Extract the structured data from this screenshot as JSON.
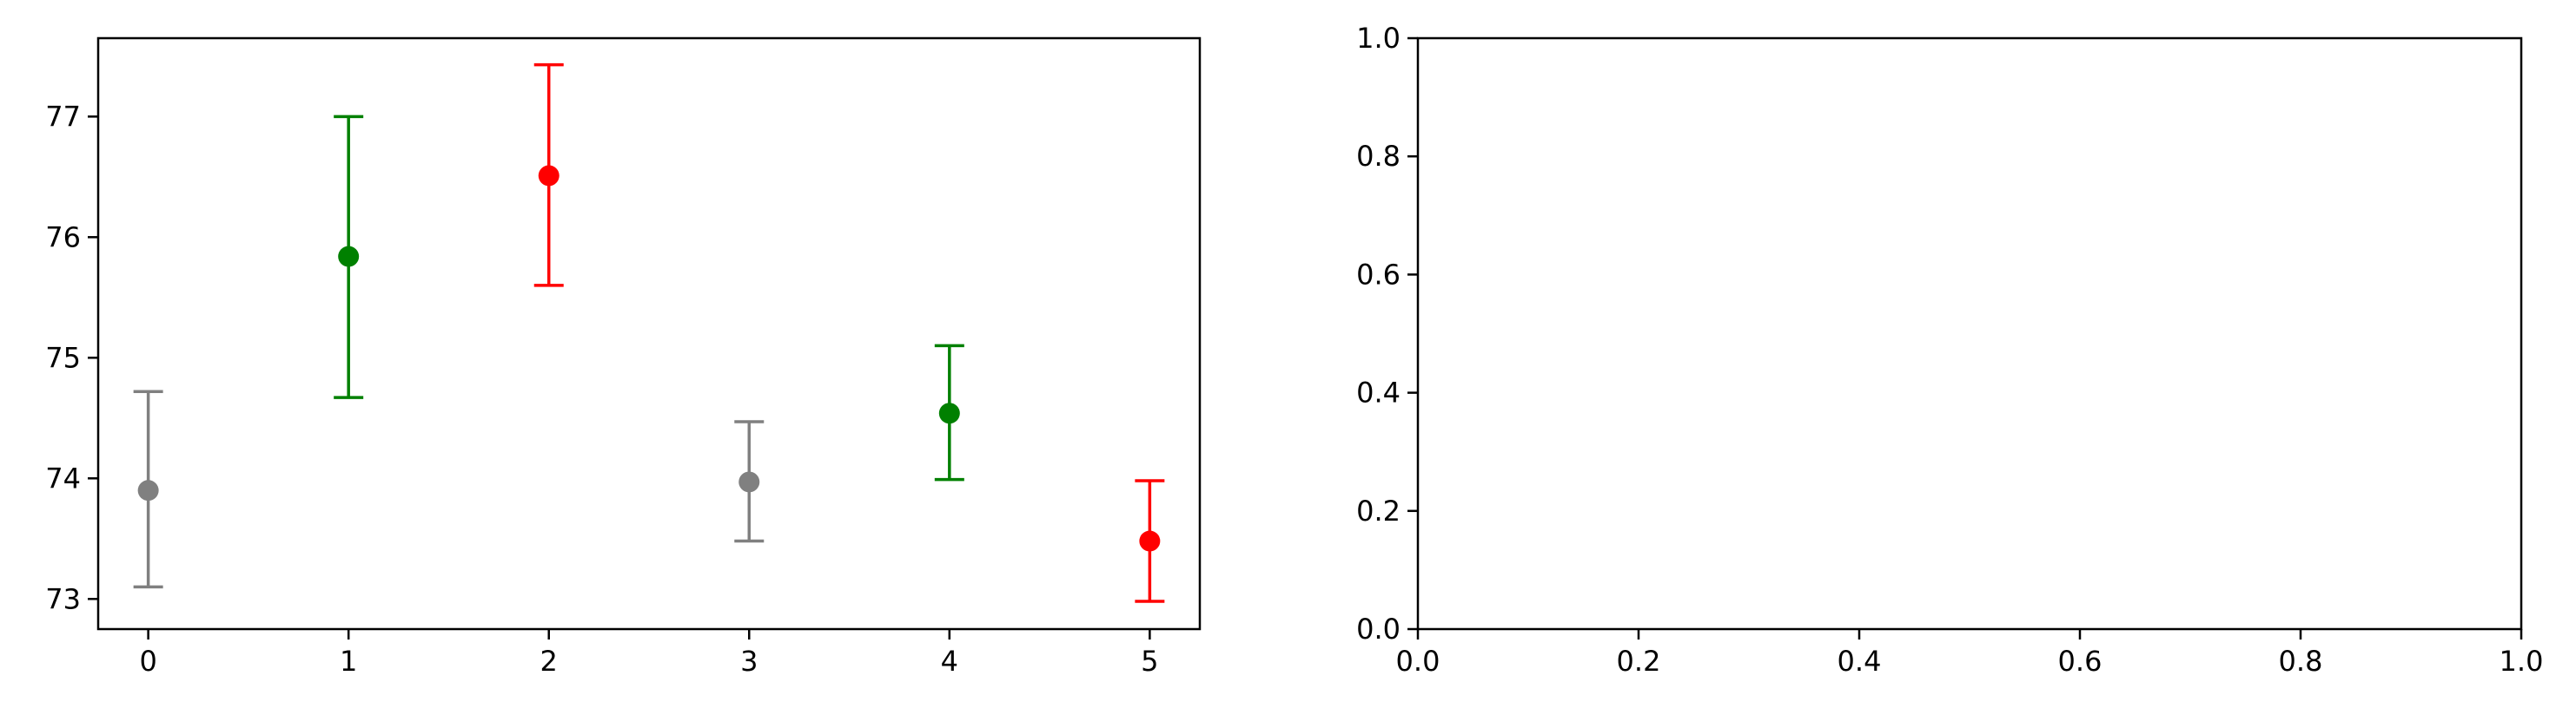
{
  "chart_data": [
    {
      "type": "scatter",
      "subtype": "errorbar",
      "title": "",
      "xlabel": "",
      "ylabel": "",
      "xlim": [
        -0.25,
        5.25
      ],
      "ylim": [
        72.75,
        77.65
      ],
      "xticks": [
        0,
        1,
        2,
        3,
        4,
        5
      ],
      "xtick_labels": [
        "0",
        "1",
        "2",
        "3",
        "4",
        "5"
      ],
      "yticks": [
        73,
        74,
        75,
        76,
        77
      ],
      "ytick_labels": [
        "73",
        "74",
        "75",
        "76",
        "77"
      ],
      "grid": false,
      "points": [
        {
          "x": 0,
          "y": 73.9,
          "err_low": 73.1,
          "err_high": 74.72,
          "color": "#808080"
        },
        {
          "x": 1,
          "y": 75.84,
          "err_low": 74.67,
          "err_high": 77.0,
          "color": "#008000"
        },
        {
          "x": 2,
          "y": 76.51,
          "err_low": 75.6,
          "err_high": 77.43,
          "color": "#ff0000"
        },
        {
          "x": 3,
          "y": 73.97,
          "err_low": 73.48,
          "err_high": 74.47,
          "color": "#808080"
        },
        {
          "x": 4,
          "y": 74.54,
          "err_low": 73.99,
          "err_high": 75.1,
          "color": "#008000"
        },
        {
          "x": 5,
          "y": 73.48,
          "err_low": 72.98,
          "err_high": 73.98,
          "color": "#ff0000"
        }
      ]
    },
    {
      "type": "scatter",
      "subtype": "empty",
      "title": "",
      "xlabel": "",
      "ylabel": "",
      "xlim": [
        0.0,
        1.0
      ],
      "ylim": [
        0.0,
        1.0
      ],
      "xticks": [
        0.0,
        0.2,
        0.4,
        0.6,
        0.8,
        1.0
      ],
      "xtick_labels": [
        "0.0",
        "0.2",
        "0.4",
        "0.6",
        "0.8",
        "1.0"
      ],
      "yticks": [
        0.0,
        0.2,
        0.4,
        0.6,
        0.8,
        1.0
      ],
      "ytick_labels": [
        "0.0",
        "0.2",
        "0.4",
        "0.6",
        "0.8",
        "1.0"
      ],
      "grid": false,
      "points": []
    }
  ]
}
